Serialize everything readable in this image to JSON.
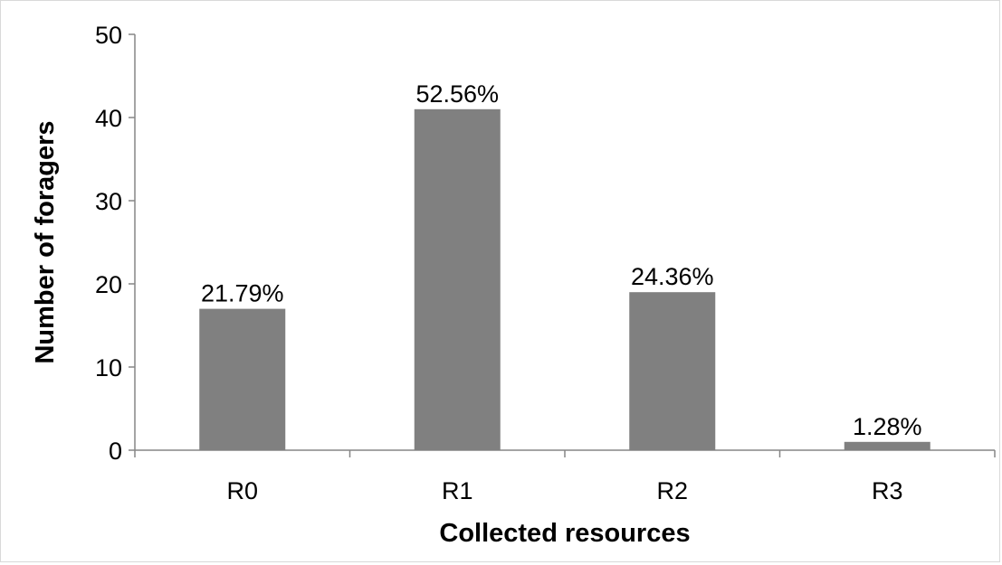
{
  "chart_data": {
    "type": "bar",
    "categories": [
      "R0",
      "R1",
      "R2",
      "R3"
    ],
    "values": [
      17,
      41,
      19,
      1
    ],
    "data_labels": [
      "21.79%",
      "52.56%",
      "24.36%",
      "1.28%"
    ],
    "xlabel": "Collected resources",
    "ylabel": "Number of foragers",
    "ylim": [
      0,
      50
    ],
    "yticks": [
      0,
      10,
      20,
      30,
      40,
      50
    ],
    "grid": false,
    "bar_color": "#808080",
    "axis_color": "#868686"
  }
}
